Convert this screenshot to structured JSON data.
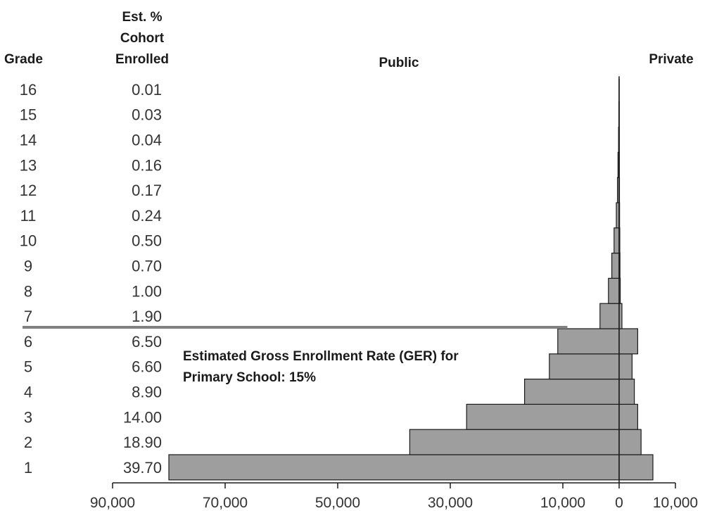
{
  "chart_data": {
    "type": "bar",
    "orientation": "horizontal-back-to-back",
    "headers": {
      "grade": "Grade",
      "est_pct": [
        "Est. %",
        "Cohort",
        "Enrolled"
      ],
      "public": "Public",
      "private": "Private"
    },
    "categories": [
      "1",
      "2",
      "3",
      "4",
      "5",
      "6",
      "7",
      "8",
      "9",
      "10",
      "11",
      "12",
      "13",
      "14",
      "15",
      "16"
    ],
    "est_pct_cohort_enrolled": [
      "39.70",
      "18.90",
      "14.00",
      "8.90",
      "6.60",
      "6.50",
      "1.90",
      "1.00",
      "0.70",
      "0.50",
      "0.24",
      "0.17",
      "0.16",
      "0.04",
      "0.03",
      "0.01"
    ],
    "series": [
      {
        "name": "Public",
        "values": [
          80000,
          37200,
          27100,
          16800,
          12400,
          10900,
          3400,
          1900,
          1300,
          900,
          500,
          300,
          200,
          100,
          50,
          20
        ]
      },
      {
        "name": "Private",
        "values": [
          6000,
          3900,
          3300,
          2700,
          2300,
          3300,
          500,
          200,
          150,
          120,
          80,
          60,
          50,
          30,
          20,
          10
        ]
      }
    ],
    "xaxis": {
      "range": [
        -90000,
        10000
      ],
      "ticks": [
        -90000,
        -70000,
        -50000,
        -30000,
        -10000,
        0,
        10000
      ],
      "tick_labels": [
        "90,000",
        "70,000",
        "50,000",
        "30,000",
        "10,000",
        "0",
        "10,000"
      ]
    },
    "separator_between_grades": [
      "6",
      "7"
    ],
    "annotation": [
      "Estimated Gross Enrollment Rate (GER) for",
      "Primary School: 15%"
    ]
  }
}
